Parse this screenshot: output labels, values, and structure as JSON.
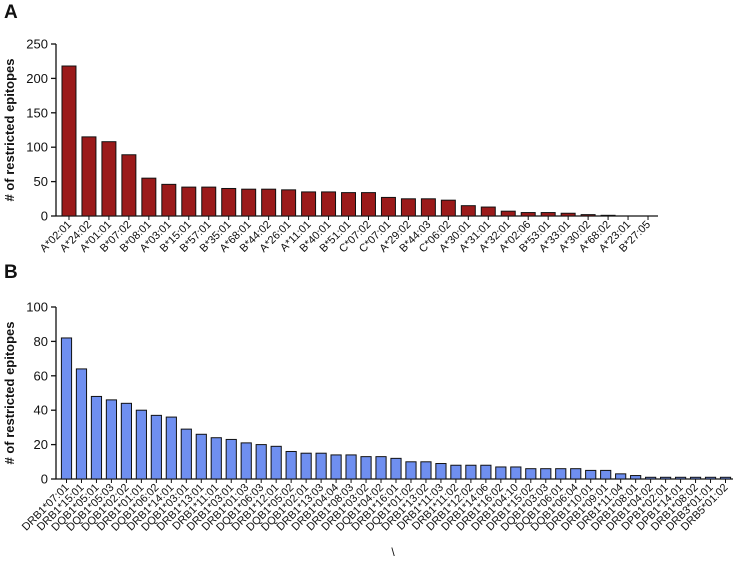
{
  "chart_data": [
    {
      "type": "bar",
      "panel_label": "A",
      "y_label": "# of restricted epitopes",
      "color": "#9b1a1a",
      "categories": [
        "A*02:01",
        "A*24:02",
        "A*01:01",
        "B*07:02",
        "B*08:01",
        "A*03:01",
        "B*15:01",
        "B*57:01",
        "B*35:01",
        "A*68:01",
        "B*44:02",
        "A*26:01",
        "A*11:01",
        "B*40:01",
        "B*51:01",
        "C*07:02",
        "C*07:01",
        "A*29:02",
        "B*44:03",
        "C*06:02",
        "A*30:01",
        "A*31:01",
        "A*32:01",
        "A*02:06",
        "B*53:01",
        "A*33:01",
        "A*30:02",
        "A*68:02",
        "A*23:01",
        "B*27:05"
      ],
      "values": [
        218,
        115,
        108,
        89,
        55,
        46,
        42,
        42,
        40,
        39,
        39,
        38,
        35,
        35,
        34,
        34,
        27,
        25,
        25,
        23,
        15,
        13,
        7,
        5,
        5,
        4,
        2,
        1,
        0,
        0
      ],
      "ylim": [
        0,
        250
      ],
      "yticks": [
        0,
        50,
        100,
        150,
        200,
        250
      ]
    },
    {
      "type": "bar",
      "panel_label": "B",
      "y_label": "# of restricted epitopes",
      "color": "#6f8ff0",
      "x_label": "\\",
      "categories": [
        "DRB1*07:01",
        "DRB1*15:01",
        "DQB1*05:01",
        "DQB1*05:03",
        "DQB1*02:02",
        "DRB1*01:01",
        "DQB1*06:02",
        "DRB1*14:01",
        "DQB1*03:01",
        "DRB1*13:01",
        "DRB1*11:01",
        "DRB1*03:01",
        "DRB1*01:03",
        "DQB1*06:03",
        "DRB1*12:01",
        "DQB1*05:02",
        "DQB1*02:01",
        "DRB1*13:03",
        "DRB1*04:04",
        "DRB1*08:03",
        "DRB1*03:02",
        "DQB1*04:02",
        "DRB1*16:01",
        "DQB1*01:02",
        "DRB1*13:02",
        "DRB1*11:03",
        "DRB1*11:02",
        "DRB1*12:02",
        "DRB1*14:06",
        "DRB1*16:02",
        "DRB1*04:10",
        "DRB1*15:02",
        "DQB1*03:03",
        "DQB1*06:01",
        "DQB1*06:04",
        "DRB1*10:01",
        "DRB1*09:01",
        "DRB1*11:04",
        "DRB1*08:01",
        "DRB1*04:02",
        "DPB1*02:01",
        "DPB1*14:01",
        "DRB1*08:02",
        "DRB3*01:01",
        "DRB5*01:02"
      ],
      "values": [
        82,
        64,
        48,
        46,
        44,
        40,
        37,
        36,
        29,
        26,
        24,
        23,
        21,
        20,
        19,
        16,
        15,
        15,
        14,
        14,
        13,
        13,
        12,
        10,
        10,
        9,
        8,
        8,
        8,
        7,
        7,
        6,
        6,
        6,
        6,
        5,
        5,
        3,
        2,
        1,
        1,
        1,
        1,
        1,
        1
      ],
      "ylim": [
        0,
        100
      ],
      "yticks": [
        0,
        20,
        40,
        60,
        80,
        100
      ]
    }
  ]
}
